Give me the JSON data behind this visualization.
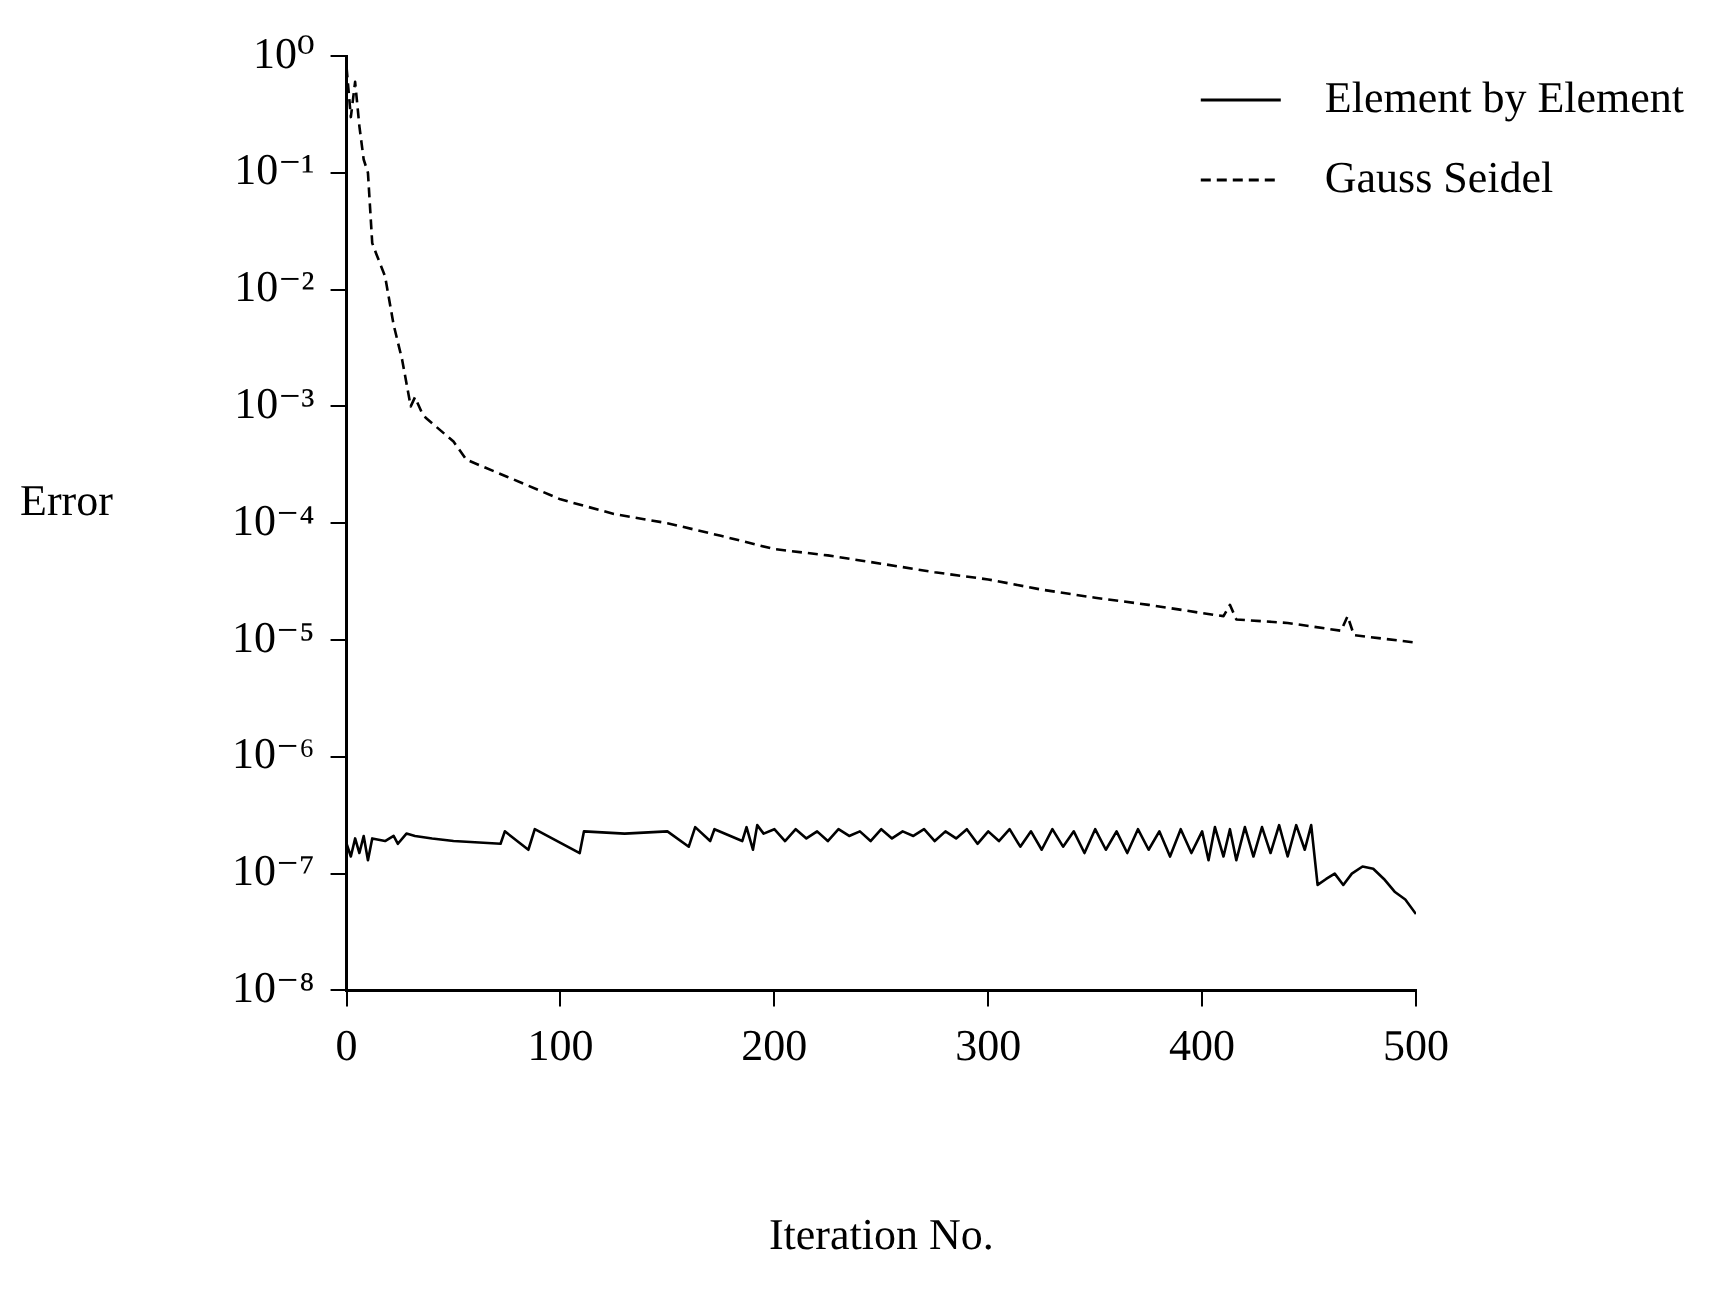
{
  "chart_data": {
    "type": "line",
    "xlabel": "Iteration No.",
    "ylabel": "Error",
    "log": "y",
    "grid": false,
    "legend": "top right",
    "marker": "none",
    "xlim": [
      0,
      500
    ],
    "xticks": [
      0,
      100,
      200,
      300,
      400,
      500
    ],
    "ylim": [
      1e-08,
      1
    ],
    "yticks": [
      {
        "value": 1,
        "label": "10⁰"
      },
      {
        "value": 0.1,
        "label": "10⁻¹"
      },
      {
        "value": 0.01,
        "label": "10⁻²"
      },
      {
        "value": 0.001,
        "label": "10⁻³"
      },
      {
        "value": 0.0001,
        "label": "10⁻⁴"
      },
      {
        "value": 1e-05,
        "label": "10⁻⁵"
      },
      {
        "value": 1e-06,
        "label": "10⁻⁶"
      },
      {
        "value": 1e-07,
        "label": "10⁻⁷"
      },
      {
        "value": 1e-08,
        "label": "10⁻⁸"
      }
    ],
    "series": [
      {
        "name": "Element by Element",
        "color": "#000000",
        "line_style": "solid",
        "x": [
          0,
          2,
          4,
          6,
          8,
          10,
          12,
          18,
          22,
          24,
          28,
          32,
          40,
          50,
          72,
          74,
          85,
          88,
          109,
          111,
          130,
          150,
          160,
          163,
          170,
          172,
          185,
          187,
          190,
          192,
          195,
          200,
          205,
          210,
          215,
          220,
          225,
          230,
          235,
          240,
          245,
          250,
          255,
          260,
          265,
          270,
          275,
          280,
          285,
          290,
          295,
          300,
          305,
          310,
          315,
          320,
          325,
          330,
          335,
          340,
          345,
          350,
          355,
          360,
          365,
          370,
          375,
          380,
          385,
          390,
          395,
          400,
          403,
          406,
          410,
          413,
          416,
          420,
          424,
          428,
          432,
          436,
          440,
          444,
          448,
          451,
          454,
          458,
          462,
          466,
          470,
          475,
          480,
          485,
          490,
          495,
          500
        ],
        "values": [
          1.8e-07,
          1.4e-07,
          2e-07,
          1.5e-07,
          2.1e-07,
          1.3e-07,
          2e-07,
          1.9e-07,
          2.1e-07,
          1.8e-07,
          2.2e-07,
          2.1e-07,
          2e-07,
          1.9e-07,
          1.8e-07,
          2.3e-07,
          1.6e-07,
          2.4e-07,
          1.5e-07,
          2.3e-07,
          2.2e-07,
          2.3e-07,
          1.7e-07,
          2.5e-07,
          1.9e-07,
          2.4e-07,
          1.9e-07,
          2.5e-07,
          1.6e-07,
          2.6e-07,
          2.2e-07,
          2.4e-07,
          1.9e-07,
          2.4e-07,
          2e-07,
          2.3e-07,
          1.9e-07,
          2.4e-07,
          2.1e-07,
          2.3e-07,
          1.9e-07,
          2.4e-07,
          2e-07,
          2.3e-07,
          2.1e-07,
          2.4e-07,
          1.9e-07,
          2.3e-07,
          2e-07,
          2.4e-07,
          1.8e-07,
          2.3e-07,
          1.9e-07,
          2.4e-07,
          1.7e-07,
          2.3e-07,
          1.6e-07,
          2.4e-07,
          1.7e-07,
          2.3e-07,
          1.5e-07,
          2.4e-07,
          1.6e-07,
          2.3e-07,
          1.5e-07,
          2.4e-07,
          1.6e-07,
          2.3e-07,
          1.4e-07,
          2.4e-07,
          1.5e-07,
          2.3e-07,
          1.3e-07,
          2.5e-07,
          1.4e-07,
          2.4e-07,
          1.3e-07,
          2.5e-07,
          1.4e-07,
          2.5e-07,
          1.5e-07,
          2.6e-07,
          1.4e-07,
          2.6e-07,
          1.6e-07,
          2.6e-07,
          8e-08,
          9e-08,
          1e-07,
          8e-08,
          1e-07,
          1.15e-07,
          1.1e-07,
          9e-08,
          7e-08,
          6e-08,
          4.5e-08
        ]
      },
      {
        "name": "Gauss Seidel",
        "color": "#000000",
        "line_style": "dashed",
        "x": [
          0,
          2,
          4,
          6,
          8,
          10,
          12,
          14,
          18,
          22,
          26,
          30,
          32,
          35,
          37,
          50,
          56,
          75,
          100,
          125,
          150,
          175,
          200,
          225,
          250,
          275,
          300,
          325,
          350,
          375,
          400,
          410,
          413,
          416,
          440,
          465,
          468,
          471,
          500
        ],
        "values": [
          0.8,
          0.3,
          0.6,
          0.25,
          0.13,
          0.1,
          0.025,
          0.02,
          0.013,
          0.005,
          0.0025,
          0.001,
          0.0012,
          0.0009,
          0.0008,
          0.0005,
          0.00035,
          0.00025,
          0.00016,
          0.00012,
          0.0001,
          7.8e-05,
          6e-05,
          5.3e-05,
          4.5e-05,
          3.8e-05,
          3.3e-05,
          2.7e-05,
          2.3e-05,
          2e-05,
          1.7e-05,
          1.6e-05,
          2e-05,
          1.5e-05,
          1.4e-05,
          1.2e-05,
          1.6e-05,
          1.1e-05,
          9.5e-06
        ]
      }
    ]
  }
}
